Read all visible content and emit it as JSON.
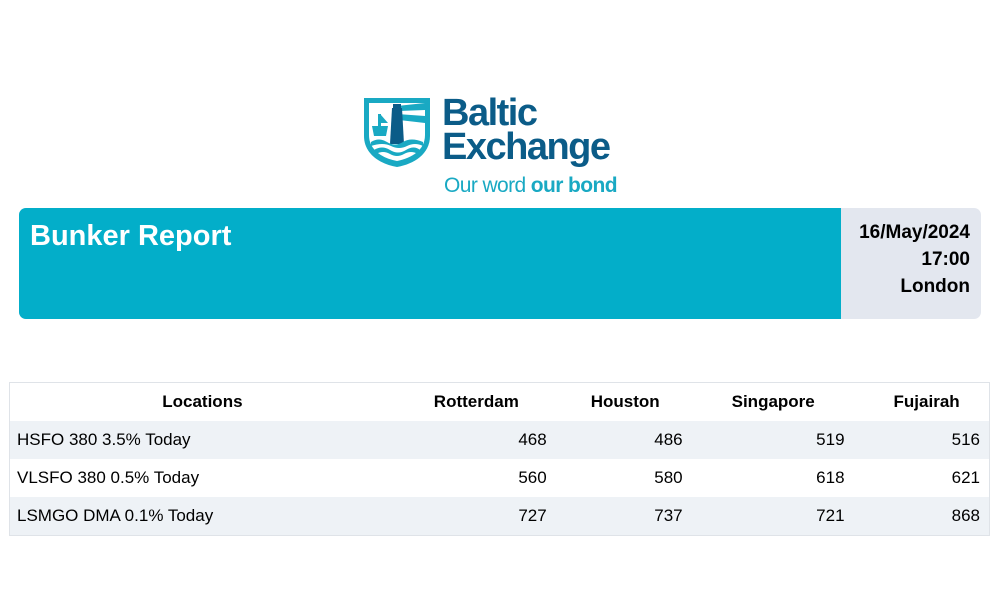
{
  "logo": {
    "word_line1": "Baltic",
    "word_line2": "Exchange",
    "tagline_regular": "Our word ",
    "tagline_bold": "our bond",
    "icon": "lighthouse-shield-icon",
    "colors": {
      "primary": "#0b5c88",
      "accent": "#19a9c3"
    }
  },
  "report": {
    "title": "Bunker Report",
    "date": "16/May/2024",
    "time": "17:00",
    "location": "London",
    "band_color": "#03aec9"
  },
  "table": {
    "headers": [
      "Locations",
      "Rotterdam",
      "Houston",
      "Singapore",
      "Fujairah"
    ],
    "rows": [
      {
        "label": "HSFO 380 3.5% Today",
        "values": [
          "468",
          "486",
          "519",
          "516"
        ]
      },
      {
        "label": "VLSFO 380 0.5% Today",
        "values": [
          "560",
          "580",
          "618",
          "621"
        ]
      },
      {
        "label": "LSMGO DMA 0.1% Today",
        "values": [
          "727",
          "737",
          "721",
          "868"
        ]
      }
    ]
  }
}
